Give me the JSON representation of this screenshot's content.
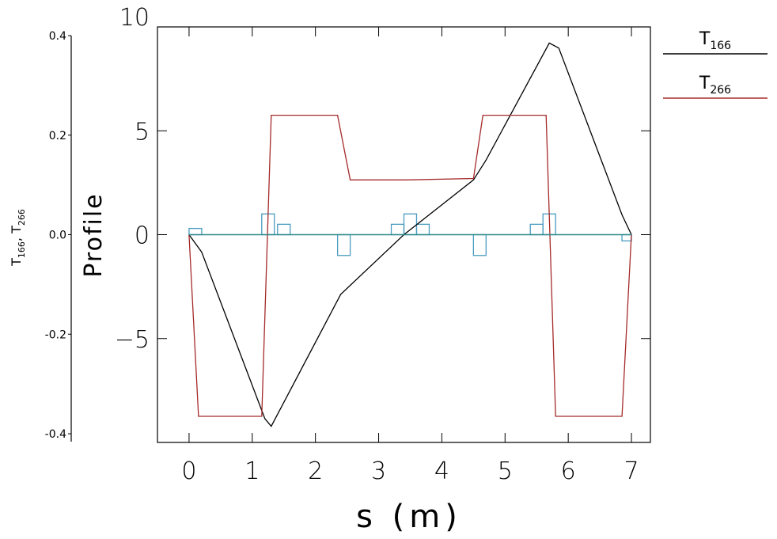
{
  "chart_data": {
    "type": "line",
    "xlabel": "s (m)",
    "ylabel": "Profile",
    "y2label": [
      "T",
      "166",
      ", T",
      "266"
    ],
    "xlim": [
      -0.5,
      7.3
    ],
    "ylim": [
      -10,
      10
    ],
    "y2lim": [
      -0.4,
      0.4
    ],
    "x_ticks": [
      0,
      1,
      2,
      3,
      4,
      5,
      6,
      7
    ],
    "y_ticks": [
      -5,
      0,
      5,
      10
    ],
    "y_tick_labels": [
      "−5",
      "0",
      "5",
      "10"
    ],
    "y2_ticks": [
      -0.4,
      -0.2,
      0.0,
      0.2,
      0.4
    ],
    "y2_tick_labels": [
      "-0.4",
      "-0.2",
      "0.0",
      "0.2",
      "0.4"
    ],
    "legend": [
      {
        "base": "T",
        "sub": "166",
        "color": "#000000"
      },
      {
        "base": "T",
        "sub": "266",
        "color": "#a52a2a"
      }
    ],
    "series": [
      {
        "name": "T166",
        "color": "#000000",
        "axis": "y2",
        "x": [
          0,
          0.2,
          1.2,
          1.3,
          2.4,
          3.4,
          4.5,
          4.7,
          5.7,
          5.85,
          6.85,
          7.0
        ],
        "y": [
          0.0,
          -0.035,
          -0.37,
          -0.385,
          -0.12,
          0.0,
          0.11,
          0.15,
          0.385,
          0.375,
          0.04,
          0.0
        ]
      },
      {
        "name": "T266",
        "color": "#a52a2a",
        "axis": "y2",
        "x": [
          0,
          0.15,
          1.15,
          1.3,
          2.35,
          2.55,
          3.45,
          4.5,
          4.65,
          5.65,
          5.8,
          6.85,
          7.0
        ],
        "y": [
          0.0,
          -0.365,
          -0.365,
          0.24,
          0.24,
          0.11,
          0.11,
          0.113,
          0.24,
          0.24,
          -0.365,
          -0.365,
          0.0
        ]
      },
      {
        "name": "Profile",
        "color": "#2e8b8b",
        "axis": "y",
        "x": [
          0,
          7.0
        ],
        "y": [
          0,
          0
        ]
      }
    ],
    "profile_blocks": [
      {
        "x0": 0.0,
        "x1": 0.2,
        "value": 0.3
      },
      {
        "x0": 1.15,
        "x1": 1.35,
        "value": 1.0
      },
      {
        "x0": 1.4,
        "x1": 1.6,
        "value": 0.5
      },
      {
        "x0": 2.35,
        "x1": 2.55,
        "value": -1.0
      },
      {
        "x0": 3.2,
        "x1": 3.4,
        "value": 0.5
      },
      {
        "x0": 3.4,
        "x1": 3.6,
        "value": 1.0
      },
      {
        "x0": 3.6,
        "x1": 3.8,
        "value": 0.5
      },
      {
        "x0": 4.5,
        "x1": 4.7,
        "value": -1.0
      },
      {
        "x0": 5.4,
        "x1": 5.6,
        "value": 0.5
      },
      {
        "x0": 5.6,
        "x1": 5.8,
        "value": 1.0
      },
      {
        "x0": 6.85,
        "x1": 7.0,
        "value": -0.3
      }
    ],
    "profile_block_color": "#4a9cc0",
    "grid": false,
    "legend_position": "top-right"
  }
}
